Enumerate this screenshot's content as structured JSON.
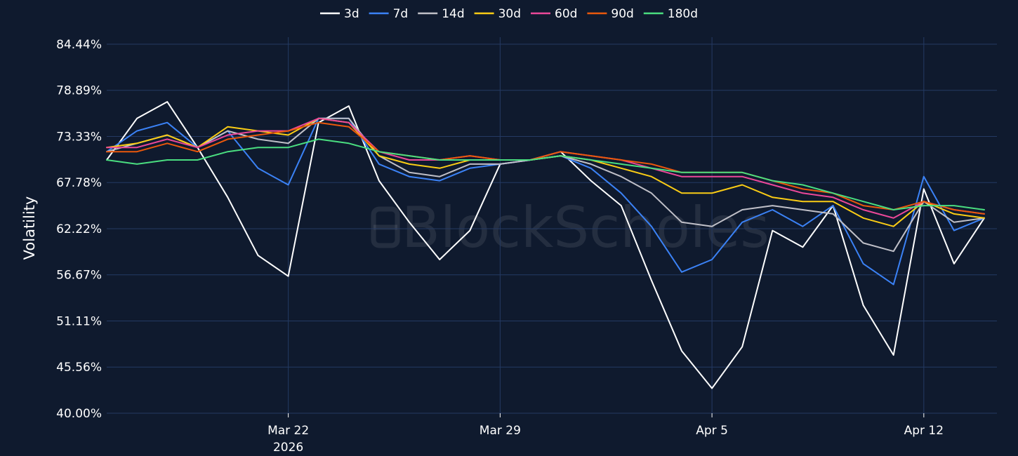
{
  "chart_data": {
    "type": "line",
    "ylabel": "Volatility",
    "ylim": [
      40.0,
      84.44
    ],
    "ytick_labels": [
      "40.00%",
      "45.56%",
      "51.11%",
      "56.67%",
      "62.22%",
      "67.78%",
      "73.33%",
      "78.89%",
      "84.44%"
    ],
    "ytick_values": [
      40.0,
      45.56,
      51.11,
      56.67,
      62.22,
      67.78,
      73.33,
      78.89,
      84.44
    ],
    "xlim": [
      "2026-03-16",
      "2026-04-14T10:00"
    ],
    "xticks": [
      {
        "date": "2026-03-22",
        "label": "Mar 22",
        "sublabel": "2026"
      },
      {
        "date": "2026-03-29",
        "label": "Mar 29",
        "sublabel": ""
      },
      {
        "date": "2026-04-05",
        "label": "Apr 5",
        "sublabel": ""
      },
      {
        "date": "2026-04-12",
        "label": "Apr 12",
        "sublabel": ""
      }
    ],
    "grid": true,
    "legend_position": "top-center",
    "x": [
      "2026-03-16",
      "2026-03-17",
      "2026-03-18",
      "2026-03-19",
      "2026-03-20",
      "2026-03-21",
      "2026-03-22",
      "2026-03-23",
      "2026-03-24",
      "2026-03-25",
      "2026-03-26",
      "2026-03-27",
      "2026-03-28",
      "2026-03-29",
      "2026-03-30",
      "2026-03-31",
      "2026-04-01",
      "2026-04-02",
      "2026-04-03",
      "2026-04-04",
      "2026-04-05",
      "2026-04-06",
      "2026-04-07",
      "2026-04-08",
      "2026-04-09",
      "2026-04-10",
      "2026-04-11",
      "2026-04-12",
      "2026-04-13",
      "2026-04-14"
    ],
    "series": [
      {
        "name": "3d",
        "color": "#ffffff",
        "values": [
          70.5,
          75.5,
          77.5,
          72.0,
          66.0,
          59.0,
          56.5,
          75.0,
          77.0,
          68.0,
          63.0,
          58.5,
          62.0,
          70.0,
          70.5,
          71.5,
          68.0,
          65.0,
          56.0,
          47.5,
          43.0,
          48.0,
          62.0,
          60.0,
          65.0,
          53.0,
          47.0,
          67.0,
          58.0,
          63.5
        ]
      },
      {
        "name": "7d",
        "color": "#3b82f6",
        "values": [
          71.5,
          74.0,
          75.0,
          72.0,
          74.0,
          69.5,
          67.5,
          75.5,
          75.5,
          70.0,
          68.5,
          68.0,
          69.5,
          70.0,
          70.5,
          71.0,
          69.5,
          66.5,
          62.5,
          57.0,
          58.5,
          63.0,
          64.5,
          62.5,
          65.0,
          58.0,
          55.5,
          68.5,
          62.0,
          63.5
        ]
      },
      {
        "name": "14d",
        "color": "#c0c0c8",
        "values": [
          71.5,
          72.5,
          73.5,
          72.0,
          74.0,
          73.0,
          72.5,
          75.5,
          75.5,
          71.0,
          69.0,
          68.5,
          70.0,
          70.0,
          70.5,
          71.0,
          70.0,
          68.5,
          66.5,
          63.0,
          62.5,
          64.5,
          65.0,
          64.5,
          64.0,
          60.5,
          59.5,
          65.5,
          63.0,
          63.5
        ]
      },
      {
        "name": "30d",
        "color": "#facc15",
        "values": [
          72.0,
          72.5,
          73.5,
          72.0,
          74.5,
          74.0,
          73.5,
          75.5,
          75.0,
          71.0,
          70.0,
          69.5,
          70.5,
          70.5,
          70.5,
          71.0,
          70.5,
          69.5,
          68.5,
          66.5,
          66.5,
          67.5,
          66.0,
          65.5,
          65.5,
          63.5,
          62.5,
          65.5,
          64.0,
          63.5
        ]
      },
      {
        "name": "60d",
        "color": "#ec4899",
        "values": [
          72.0,
          72.0,
          73.0,
          72.0,
          73.5,
          74.0,
          74.0,
          75.5,
          75.0,
          71.5,
          70.5,
          70.5,
          71.0,
          70.5,
          70.5,
          71.5,
          71.0,
          70.5,
          69.5,
          68.5,
          68.5,
          68.5,
          67.5,
          66.5,
          66.0,
          64.5,
          63.5,
          65.5,
          64.5,
          64.0
        ]
      },
      {
        "name": "90d",
        "color": "#ea580c",
        "values": [
          71.5,
          71.5,
          72.5,
          71.5,
          73.0,
          73.5,
          74.0,
          75.0,
          74.5,
          71.5,
          71.0,
          70.5,
          71.0,
          70.5,
          70.5,
          71.5,
          71.0,
          70.5,
          70.0,
          69.0,
          69.0,
          69.0,
          68.0,
          67.0,
          66.5,
          65.0,
          64.5,
          65.5,
          64.5,
          64.0
        ]
      },
      {
        "name": "180d",
        "color": "#4ade80",
        "values": [
          70.5,
          70.0,
          70.5,
          70.5,
          71.5,
          72.0,
          72.0,
          73.0,
          72.5,
          71.5,
          71.0,
          70.5,
          70.5,
          70.5,
          70.5,
          71.0,
          70.5,
          70.0,
          69.5,
          69.0,
          69.0,
          69.0,
          68.0,
          67.5,
          66.5,
          65.5,
          64.5,
          65.0,
          65.0,
          64.5
        ]
      }
    ]
  }
}
